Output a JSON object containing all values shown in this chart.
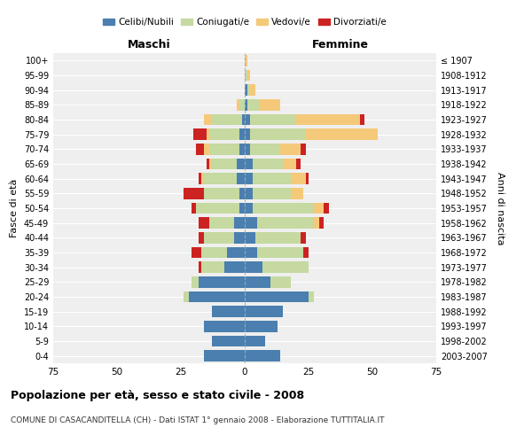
{
  "age_groups": [
    "0-4",
    "5-9",
    "10-14",
    "15-19",
    "20-24",
    "25-29",
    "30-34",
    "35-39",
    "40-44",
    "45-49",
    "50-54",
    "55-59",
    "60-64",
    "65-69",
    "70-74",
    "75-79",
    "80-84",
    "85-89",
    "90-94",
    "95-99",
    "100+"
  ],
  "birth_years": [
    "2003-2007",
    "1998-2002",
    "1993-1997",
    "1988-1992",
    "1983-1987",
    "1978-1982",
    "1973-1977",
    "1968-1972",
    "1963-1967",
    "1958-1962",
    "1953-1957",
    "1948-1952",
    "1943-1947",
    "1938-1942",
    "1933-1937",
    "1928-1932",
    "1923-1927",
    "1918-1922",
    "1913-1917",
    "1908-1912",
    "≤ 1907"
  ],
  "colors": {
    "celibi": "#4a7faf",
    "coniugati": "#c5d9a0",
    "vedovi": "#f5c97a",
    "divorziati": "#cc2222"
  },
  "maschi": {
    "celibi": [
      16,
      13,
      16,
      13,
      22,
      18,
      8,
      7,
      4,
      4,
      2,
      2,
      3,
      3,
      2,
      2,
      1,
      0,
      0,
      0,
      0
    ],
    "coniugati": [
      0,
      0,
      0,
      0,
      2,
      3,
      9,
      10,
      12,
      10,
      17,
      14,
      13,
      10,
      12,
      12,
      12,
      2,
      0,
      0,
      0
    ],
    "vedovi": [
      0,
      0,
      0,
      0,
      0,
      0,
      0,
      0,
      0,
      0,
      0,
      0,
      1,
      1,
      2,
      1,
      3,
      1,
      0,
      0,
      0
    ],
    "divorziati": [
      0,
      0,
      0,
      0,
      0,
      0,
      1,
      4,
      2,
      4,
      2,
      8,
      1,
      1,
      3,
      5,
      0,
      0,
      0,
      0,
      0
    ]
  },
  "femmine": {
    "celibi": [
      14,
      8,
      13,
      15,
      25,
      10,
      7,
      5,
      4,
      5,
      3,
      3,
      3,
      3,
      2,
      2,
      2,
      1,
      1,
      0,
      0
    ],
    "coniugati": [
      0,
      0,
      0,
      0,
      2,
      8,
      18,
      18,
      18,
      22,
      24,
      15,
      15,
      12,
      12,
      22,
      18,
      5,
      1,
      1,
      0
    ],
    "vedovi": [
      0,
      0,
      0,
      0,
      0,
      0,
      0,
      0,
      0,
      2,
      4,
      5,
      6,
      5,
      8,
      28,
      25,
      8,
      2,
      1,
      1
    ],
    "divorziati": [
      0,
      0,
      0,
      0,
      0,
      0,
      0,
      2,
      2,
      2,
      2,
      0,
      1,
      2,
      2,
      0,
      2,
      0,
      0,
      0,
      0
    ]
  },
  "title": "Popolazione per età, sesso e stato civile - 2008",
  "subtitle": "COMUNE DI CASACANDITELLA (CH) - Dati ISTAT 1° gennaio 2008 - Elaborazione TUTTITALIA.IT",
  "xlabel_left": "Maschi",
  "xlabel_right": "Femmine",
  "ylabel_left": "Fasce di età",
  "ylabel_right": "Anni di nascita",
  "xlim": 75,
  "legend_labels": [
    "Celibi/Nubili",
    "Coniugati/e",
    "Vedovi/e",
    "Divorziati/e"
  ],
  "bg_color": "#efefef",
  "bar_height": 0.75
}
